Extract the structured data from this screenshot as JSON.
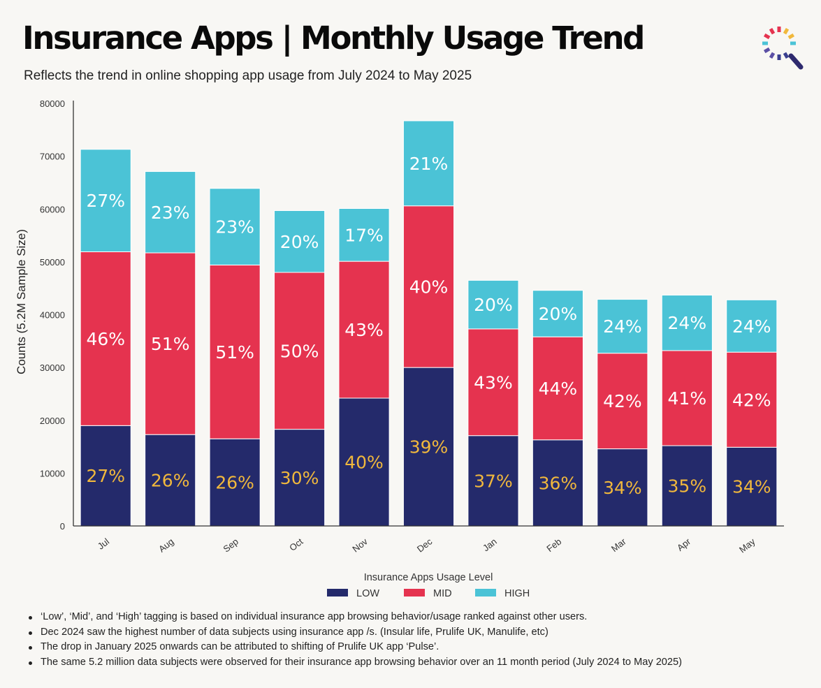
{
  "header": {
    "title": "Insurance Apps | Monthly Usage Trend",
    "subtitle": "Reflects the trend in online shopping app usage from July 2024 to May 2025"
  },
  "colors": {
    "low": "#242a6b",
    "mid": "#e5334f",
    "high": "#4bc3d6",
    "low_label": "#f1b83c",
    "label": "#ffffff",
    "axis": "#333333"
  },
  "chart_data": {
    "type": "bar",
    "stacked": true,
    "title": "",
    "xlabel": "",
    "ylabel": "Counts  (5.2M Sample Size)",
    "ylim": [
      0,
      80000
    ],
    "yticks": [
      "0",
      "10000",
      "20000",
      "30000",
      "40000",
      "50000",
      "60000",
      "70000",
      "80000"
    ],
    "grid": false,
    "legend_title": "Insurance Apps Usage Level",
    "legend_position": "bottom",
    "categories": [
      "Jul",
      "Aug",
      "Sep",
      "Oct",
      "Nov",
      "Dec",
      "Jan",
      "Feb",
      "Mar",
      "Apr",
      "May"
    ],
    "series": [
      {
        "name": "LOW",
        "values": [
          19000,
          17300,
          16500,
          18300,
          24200,
          30000,
          17100,
          16300,
          14600,
          15200,
          14900
        ],
        "labels": [
          "27%",
          "26%",
          "26%",
          "30%",
          "40%",
          "39%",
          "37%",
          "36%",
          "34%",
          "35%",
          "34%"
        ]
      },
      {
        "name": "MID",
        "values": [
          32900,
          34400,
          32900,
          29700,
          25900,
          30600,
          20200,
          19500,
          18100,
          18000,
          18000
        ],
        "labels": [
          "46%",
          "51%",
          "51%",
          "50%",
          "43%",
          "40%",
          "43%",
          "44%",
          "42%",
          "41%",
          "42%"
        ]
      },
      {
        "name": "HIGH",
        "values": [
          19400,
          15400,
          14500,
          11700,
          10000,
          16100,
          9200,
          8800,
          10200,
          10500,
          9900
        ],
        "labels": [
          "27%",
          "23%",
          "23%",
          "20%",
          "17%",
          "21%",
          "20%",
          "20%",
          "24%",
          "24%",
          "24%"
        ]
      }
    ]
  },
  "notes": [
    "‘Low’, ‘Mid’, and ‘High’ tagging is based on individual insurance app browsing behavior/usage ranked against other users.",
    "Dec 2024 saw the highest number of data subjects using insurance app /s. (Insular life, Prulife UK, Manulife, etc)",
    "The drop in January 2025 onwards can be attributed to shifting of Prulife UK app ‘Pulse’.",
    "The same 5.2 million data subjects were observed for their insurance app browsing behavior over an 11 month period (July 2024 to May 2025)"
  ],
  "logo": {
    "icon": "magnifier-icon"
  }
}
